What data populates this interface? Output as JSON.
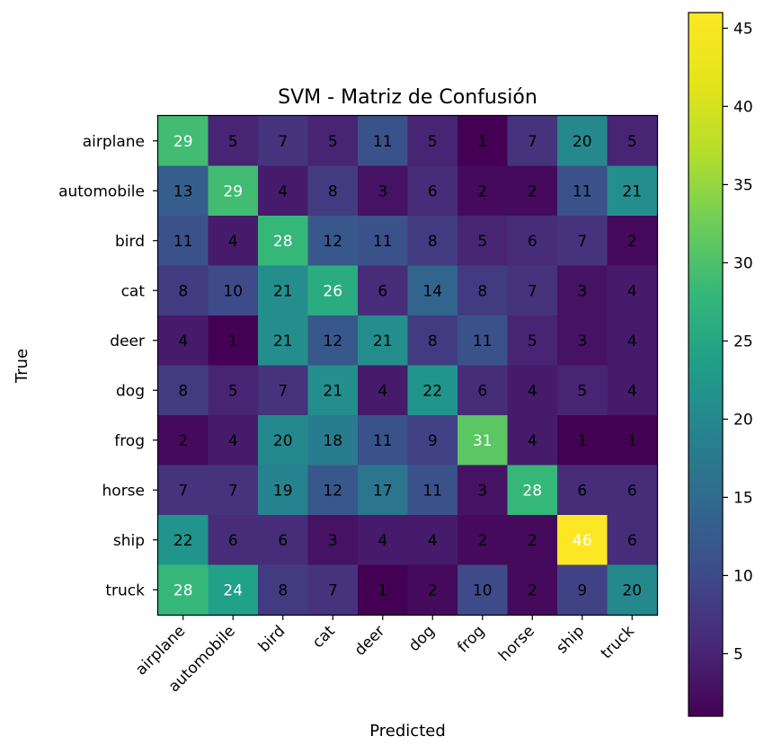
{
  "chart_data": {
    "type": "heatmap",
    "title": "SVM - Matriz de Confusión",
    "xlabel": "Predicted",
    "ylabel": "True",
    "x_categories": [
      "airplane",
      "automobile",
      "bird",
      "cat",
      "deer",
      "dog",
      "frog",
      "horse",
      "ship",
      "truck"
    ],
    "y_categories": [
      "airplane",
      "automobile",
      "bird",
      "cat",
      "deer",
      "dog",
      "frog",
      "horse",
      "ship",
      "truck"
    ],
    "values": [
      [
        29,
        5,
        7,
        5,
        11,
        5,
        1,
        7,
        20,
        5
      ],
      [
        13,
        29,
        4,
        8,
        3,
        6,
        2,
        2,
        11,
        21
      ],
      [
        11,
        4,
        28,
        12,
        11,
        8,
        5,
        6,
        7,
        2
      ],
      [
        8,
        10,
        21,
        26,
        6,
        14,
        8,
        7,
        3,
        4
      ],
      [
        4,
        1,
        21,
        12,
        21,
        8,
        11,
        5,
        3,
        4
      ],
      [
        8,
        5,
        7,
        21,
        4,
        22,
        6,
        4,
        5,
        4
      ],
      [
        2,
        4,
        20,
        18,
        11,
        9,
        31,
        4,
        1,
        1
      ],
      [
        7,
        7,
        19,
        12,
        17,
        11,
        3,
        28,
        6,
        6
      ],
      [
        22,
        6,
        6,
        3,
        4,
        4,
        2,
        2,
        46,
        6
      ],
      [
        28,
        24,
        8,
        7,
        1,
        2,
        10,
        2,
        9,
        20
      ]
    ],
    "colormap": "viridis",
    "value_range": [
      1,
      46
    ],
    "colorbar_ticks": [
      5,
      10,
      15,
      20,
      25,
      30,
      35,
      40,
      45
    ],
    "grid": false,
    "colors": {
      "text_dark": "#000000",
      "text_light": "#ffffff",
      "axis": "#000000"
    }
  }
}
